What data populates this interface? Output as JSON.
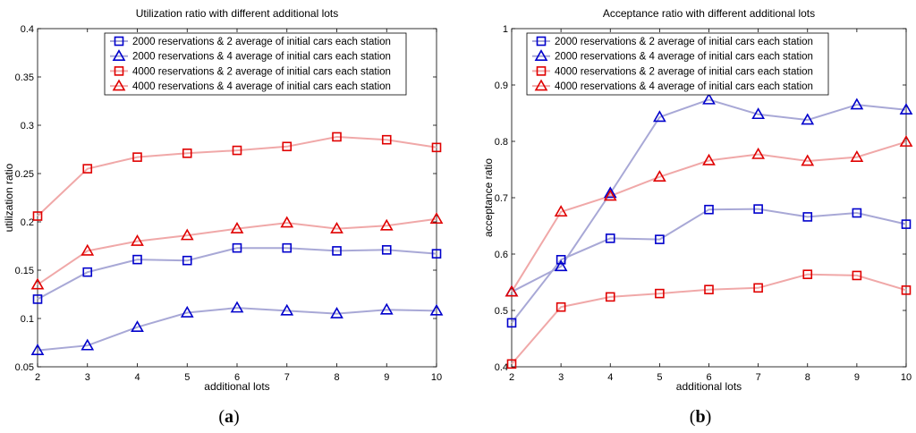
{
  "chart_data": [
    {
      "type": "line",
      "panel_label_open": "(",
      "panel_label": "a",
      "panel_label_close": ")",
      "title": "Utilization ratio with different additional lots",
      "xlabel": "additional lots",
      "ylabel": "utilization ratio",
      "xlim": [
        2,
        10
      ],
      "ylim": [
        0.05,
        0.4
      ],
      "xticks": [
        2,
        3,
        4,
        5,
        6,
        7,
        8,
        9,
        10
      ],
      "yticks": [
        0.05,
        0.1,
        0.15,
        0.2,
        0.25,
        0.3,
        0.35,
        0.4
      ],
      "ytick_labels": [
        "0.05",
        "0.1",
        "0.15",
        "0.2",
        "0.25",
        "0.3",
        "0.35",
        "0.4"
      ],
      "legend_position": "top-right",
      "x": [
        2,
        3,
        4,
        5,
        6,
        7,
        8,
        9,
        10
      ],
      "series": [
        {
          "name": "2000 reservations & 2 average of initial cars each station",
          "marker": "square",
          "color": "#0000cc",
          "line_color": "#a8a8d6",
          "values": [
            0.12,
            0.148,
            0.161,
            0.16,
            0.173,
            0.173,
            0.17,
            0.171,
            0.167
          ]
        },
        {
          "name": "2000 reservations & 4 average of initial cars each station",
          "marker": "triangle",
          "color": "#0000cc",
          "line_color": "#a8a8d6",
          "values": [
            0.067,
            0.072,
            0.091,
            0.106,
            0.111,
            0.108,
            0.105,
            0.109,
            0.108
          ]
        },
        {
          "name": "4000 reservations & 2 average of initial cars each station",
          "marker": "square",
          "color": "#e00000",
          "line_color": "#f0a8a8",
          "values": [
            0.206,
            0.255,
            0.267,
            0.271,
            0.274,
            0.278,
            0.288,
            0.285,
            0.277
          ]
        },
        {
          "name": "4000 reservations & 4 average of initial cars each station",
          "marker": "triangle",
          "color": "#e00000",
          "line_color": "#f0a8a8",
          "values": [
            0.135,
            0.17,
            0.18,
            0.186,
            0.193,
            0.199,
            0.193,
            0.196,
            0.203
          ]
        }
      ]
    },
    {
      "type": "line",
      "panel_label_open": "(",
      "panel_label": "b",
      "panel_label_close": ")",
      "title": "Acceptance ratio with different additional lots",
      "xlabel": "additional lots",
      "ylabel": "acceptance ratio",
      "xlim": [
        2,
        10
      ],
      "ylim": [
        0.4,
        1.0
      ],
      "xticks": [
        2,
        3,
        4,
        5,
        6,
        7,
        8,
        9,
        10
      ],
      "yticks": [
        0.4,
        0.5,
        0.6,
        0.7,
        0.8,
        0.9,
        1.0
      ],
      "ytick_labels": [
        "0.4",
        "0.5",
        "0.6",
        "0.7",
        "0.8",
        "0.9",
        "1"
      ],
      "legend_position": "top-right",
      "x": [
        2,
        3,
        4,
        5,
        6,
        7,
        8,
        9,
        10
      ],
      "series": [
        {
          "name": "2000 reservations & 2 average of initial cars each station",
          "marker": "square",
          "color": "#0000cc",
          "line_color": "#a8a8d6",
          "values": [
            0.478,
            0.59,
            0.628,
            0.626,
            0.679,
            0.68,
            0.666,
            0.673,
            0.653
          ]
        },
        {
          "name": "2000 reservations & 4 average of initial cars each station",
          "marker": "triangle",
          "color": "#0000cc",
          "line_color": "#a8a8d6",
          "values": [
            0.533,
            0.578,
            0.708,
            0.843,
            0.874,
            0.848,
            0.838,
            0.865,
            0.856
          ]
        },
        {
          "name": "4000 reservations & 2 average of initial cars each station",
          "marker": "square",
          "color": "#e00000",
          "line_color": "#f0a8a8",
          "values": [
            0.405,
            0.506,
            0.524,
            0.53,
            0.537,
            0.54,
            0.564,
            0.562,
            0.536
          ]
        },
        {
          "name": "4000 reservations & 4 average of initial cars each station",
          "marker": "triangle",
          "color": "#e00000",
          "line_color": "#f0a8a8",
          "values": [
            0.533,
            0.675,
            0.703,
            0.737,
            0.766,
            0.777,
            0.765,
            0.772,
            0.799
          ]
        }
      ]
    }
  ]
}
